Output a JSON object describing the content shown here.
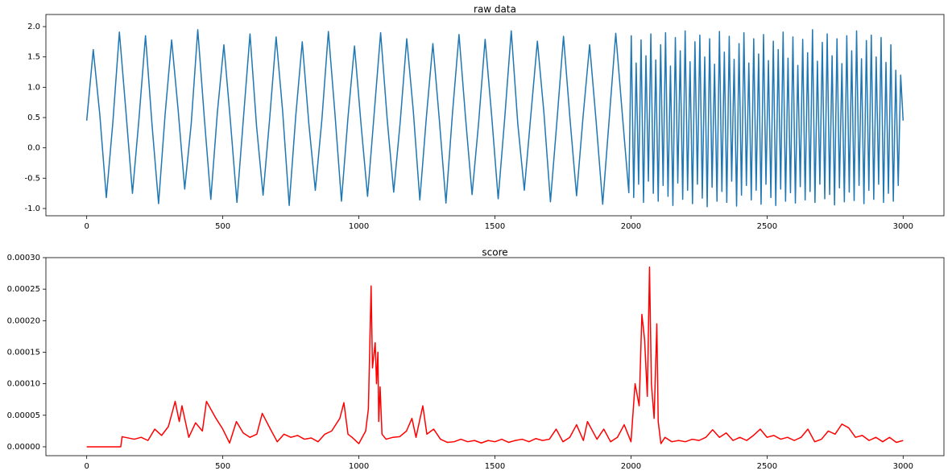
{
  "chart_data": [
    {
      "type": "line",
      "title": "raw data",
      "color": "#1f77b4",
      "x": [
        0,
        24,
        48,
        72,
        96,
        120,
        144,
        168,
        192,
        216,
        240,
        264,
        288,
        312,
        336,
        360,
        384,
        408,
        432,
        456,
        480,
        504,
        528,
        552,
        576,
        600,
        624,
        648,
        672,
        696,
        720,
        744,
        768,
        792,
        816,
        840,
        864,
        888,
        912,
        936,
        960,
        984,
        1008,
        1032,
        1056,
        1080,
        1104,
        1128,
        1152,
        1176,
        1200,
        1224,
        1248,
        1272,
        1296,
        1320,
        1344,
        1368,
        1392,
        1416,
        1440,
        1464,
        1488,
        1512,
        1536,
        1560,
        1584,
        1608,
        1632,
        1656,
        1680,
        1704,
        1728,
        1752,
        1776,
        1800,
        1824,
        1848,
        1872,
        1896,
        1920,
        1944,
        1968,
        1992,
        2001,
        2010,
        2019,
        2028,
        2037,
        2046,
        2055,
        2064,
        2073,
        2082,
        2091,
        2100,
        2109,
        2118,
        2127,
        2136,
        2145,
        2154,
        2163,
        2172,
        2181,
        2190,
        2199,
        2208,
        2217,
        2226,
        2235,
        2244,
        2253,
        2262,
        2271,
        2280,
        2289,
        2298,
        2307,
        2316,
        2325,
        2334,
        2343,
        2352,
        2361,
        2370,
        2379,
        2388,
        2397,
        2406,
        2415,
        2424,
        2433,
        2442,
        2451,
        2460,
        2469,
        2478,
        2487,
        2496,
        2505,
        2514,
        2523,
        2532,
        2541,
        2550,
        2559,
        2568,
        2577,
        2586,
        2595,
        2604,
        2613,
        2622,
        2631,
        2640,
        2649,
        2658,
        2667,
        2676,
        2685,
        2694,
        2703,
        2712,
        2721,
        2730,
        2739,
        2748,
        2757,
        2766,
        2775,
        2784,
        2793,
        2802,
        2811,
        2820,
        2829,
        2838,
        2847,
        2856,
        2865,
        2874,
        2883,
        2892,
        2901,
        2910,
        2919,
        2928,
        2937,
        2946,
        2955,
        2964,
        2973,
        2982,
        2991,
        3000
      ],
      "values": [
        0.45,
        1.62,
        0.55,
        -0.82,
        0.42,
        1.91,
        0.6,
        -0.75,
        0.48,
        1.85,
        0.38,
        -0.92,
        0.55,
        1.78,
        0.62,
        -0.68,
        0.4,
        1.95,
        0.5,
        -0.85,
        0.58,
        1.7,
        0.44,
        -0.9,
        0.5,
        1.88,
        0.36,
        -0.78,
        0.47,
        1.83,
        0.6,
        -0.95,
        0.52,
        1.75,
        0.41,
        -0.7,
        0.46,
        1.92,
        0.57,
        -0.88,
        0.5,
        1.68,
        0.39,
        -0.8,
        0.55,
        1.9,
        0.48,
        -0.73,
        0.43,
        1.8,
        0.61,
        -0.86,
        0.5,
        1.72,
        0.45,
        -0.91,
        0.57,
        1.87,
        0.5,
        -0.77,
        0.41,
        1.79,
        0.53,
        -0.84,
        0.49,
        1.93,
        0.4,
        -0.7,
        0.54,
        1.76,
        0.58,
        -0.89,
        0.45,
        1.84,
        0.47,
        -0.79,
        0.52,
        1.7,
        0.43,
        -0.93,
        0.48,
        1.89,
        0.56,
        -0.74,
        1.85,
        -0.82,
        1.4,
        -0.6,
        1.78,
        -0.9,
        1.52,
        -0.55,
        1.88,
        -0.75,
        1.45,
        -0.88,
        1.7,
        -0.62,
        1.9,
        -0.8,
        1.35,
        -0.95,
        1.82,
        -0.58,
        1.6,
        -0.85,
        1.93,
        -0.7,
        1.42,
        -0.92,
        1.75,
        -0.6,
        1.86,
        -0.83,
        1.5,
        -0.97,
        1.8,
        -0.65,
        1.38,
        -0.88,
        1.92,
        -0.72,
        1.58,
        -0.9,
        1.84,
        -0.55,
        1.46,
        -0.96,
        1.72,
        -0.78,
        1.9,
        -0.62,
        1.4,
        -0.86,
        1.8,
        -0.7,
        1.55,
        -0.93,
        1.87,
        -0.6,
        1.44,
        -0.82,
        1.76,
        -0.95,
        1.62,
        -0.68,
        1.91,
        -0.88,
        1.48,
        -0.74,
        1.83,
        -0.91,
        1.36,
        -0.64,
        1.79,
        -0.86,
        1.57,
        -0.72,
        1.95,
        -0.9,
        1.43,
        -0.6,
        1.74,
        -0.84,
        1.88,
        -0.77,
        1.52,
        -0.94,
        1.8,
        -0.66,
        1.39,
        -0.89,
        1.85,
        -0.73,
        1.6,
        -0.87,
        1.93,
        -0.62,
        1.47,
        -0.92,
        1.77,
        -0.7,
        1.86,
        -0.85,
        1.5,
        -0.6,
        1.82,
        -0.9,
        1.41,
        -0.75,
        1.7,
        -0.88,
        1.28,
        -0.62,
        1.2,
        0.45
      ],
      "xlim": [
        -150,
        3150
      ],
      "xticks": [
        0,
        500,
        1000,
        1500,
        2000,
        2500,
        3000
      ],
      "ylim": [
        -1.12,
        2.2
      ],
      "yticks": [
        {
          "value": -1,
          "label": "-1.0"
        },
        {
          "value": -0.5,
          "label": "-0.5"
        },
        {
          "value": 0,
          "label": "0.0"
        },
        {
          "value": 0.5,
          "label": "0.5"
        },
        {
          "value": 1,
          "label": "1.0"
        },
        {
          "value": 1.5,
          "label": "1.5"
        },
        {
          "value": 2,
          "label": "2.0"
        }
      ]
    },
    {
      "type": "line",
      "title": "score",
      "color": "#ff0000",
      "x": [
        0,
        125,
        130,
        175,
        200,
        225,
        250,
        275,
        300,
        325,
        340,
        350,
        375,
        400,
        425,
        440,
        475,
        500,
        525,
        550,
        575,
        600,
        625,
        645,
        675,
        700,
        725,
        750,
        775,
        800,
        825,
        850,
        875,
        900,
        930,
        945,
        960,
        975,
        1000,
        1025,
        1035,
        1045,
        1050,
        1060,
        1065,
        1070,
        1073,
        1078,
        1085,
        1100,
        1125,
        1150,
        1175,
        1195,
        1210,
        1235,
        1250,
        1275,
        1300,
        1325,
        1350,
        1375,
        1400,
        1425,
        1450,
        1475,
        1500,
        1525,
        1550,
        1575,
        1600,
        1625,
        1650,
        1675,
        1700,
        1725,
        1750,
        1775,
        1800,
        1825,
        1840,
        1875,
        1900,
        1925,
        1950,
        1975,
        2000,
        2015,
        2030,
        2040,
        2050,
        2060,
        2068,
        2075,
        2085,
        2095,
        2100,
        2110,
        2125,
        2150,
        2175,
        2200,
        2225,
        2250,
        2275,
        2300,
        2325,
        2350,
        2375,
        2400,
        2425,
        2450,
        2475,
        2500,
        2525,
        2550,
        2575,
        2600,
        2625,
        2650,
        2675,
        2700,
        2725,
        2750,
        2775,
        2800,
        2825,
        2850,
        2875,
        2900,
        2925,
        2950,
        2975,
        3000
      ],
      "values": [
        0,
        0,
        1.6e-05,
        1.2e-05,
        1.5e-05,
        1e-05,
        2.8e-05,
        1.8e-05,
        3.2e-05,
        7.2e-05,
        4e-05,
        6.5e-05,
        1.5e-05,
        3.8e-05,
        2.5e-05,
        7.2e-05,
        4.5e-05,
        2.8e-05,
        6e-06,
        4e-05,
        2.2e-05,
        1.5e-05,
        2e-05,
        5.3e-05,
        2.8e-05,
        8e-06,
        2e-05,
        1.5e-05,
        1.8e-05,
        1.2e-05,
        1.4e-05,
        8e-06,
        2e-05,
        2.5e-05,
        4.5e-05,
        7e-05,
        2e-05,
        1.5e-05,
        5e-06,
        2.5e-05,
        6e-05,
        0.000255,
        0.000125,
        0.000165,
        0.0001,
        0.00015,
        4e-05,
        9.5e-05,
        2e-05,
        1.2e-05,
        1.5e-05,
        1.6e-05,
        2.5e-05,
        4.5e-05,
        1.5e-05,
        6.5e-05,
        2e-05,
        2.8e-05,
        1.2e-05,
        7e-06,
        8e-06,
        1.2e-05,
        8e-06,
        1e-05,
        6e-06,
        1e-05,
        8e-06,
        1.2e-05,
        7e-06,
        1e-05,
        1.2e-05,
        8e-06,
        1.3e-05,
        1e-05,
        1.2e-05,
        2.8e-05,
        8e-06,
        1.5e-05,
        3.5e-05,
        1e-05,
        4e-05,
        1.2e-05,
        2.8e-05,
        8e-06,
        1.5e-05,
        3.5e-05,
        8e-06,
        0.0001,
        6.5e-05,
        0.00021,
        0.00017,
        8e-05,
        0.000285,
        0.0001,
        4.5e-05,
        0.000195,
        4e-05,
        5e-06,
        1.5e-05,
        8e-06,
        1e-05,
        8e-06,
        1.2e-05,
        1e-05,
        1.5e-05,
        2.7e-05,
        1.5e-05,
        2.2e-05,
        1e-05,
        1.5e-05,
        1e-05,
        1.8e-05,
        2.8e-05,
        1.5e-05,
        1.8e-05,
        1.2e-05,
        1.5e-05,
        1e-05,
        1.5e-05,
        2.8e-05,
        8e-06,
        1.2e-05,
        2.5e-05,
        2e-05,
        3.6e-05,
        3e-05,
        1.5e-05,
        1.8e-05,
        1e-05,
        1.5e-05,
        8e-06,
        1.5e-05,
        7e-06,
        1e-05
      ],
      "xlim": [
        -150,
        3150
      ],
      "xticks": [
        0,
        500,
        1000,
        1500,
        2000,
        2500,
        3000
      ],
      "ylim": [
        -1.41e-05,
        0.0003
      ],
      "yticks": [
        {
          "value": 0,
          "label": "0.00000"
        },
        {
          "value": 5e-05,
          "label": "0.00005"
        },
        {
          "value": 0.0001,
          "label": "0.00010"
        },
        {
          "value": 0.00015,
          "label": "0.00015"
        },
        {
          "value": 0.0002,
          "label": "0.00020"
        },
        {
          "value": 0.00025,
          "label": "0.00025"
        },
        {
          "value": 0.0003,
          "label": "0.00030"
        }
      ]
    }
  ]
}
